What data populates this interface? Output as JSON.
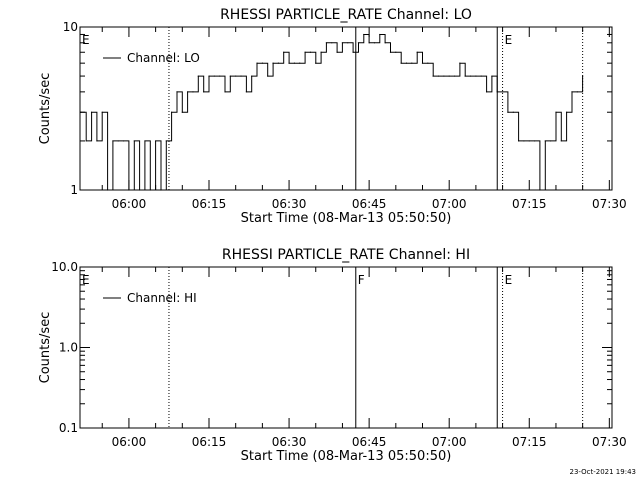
{
  "footer": {
    "timestamp": "23-Oct-2021 19:43"
  },
  "chart_data": [
    {
      "type": "line",
      "title": "RHESSI PARTICLE_RATE Channel: LO",
      "xlabel": "Start Time (08-Mar-13 05:50:50)",
      "ylabel": "Counts/sec",
      "yscale": "log",
      "ylim": [
        1,
        10
      ],
      "yticks": [
        1,
        10
      ],
      "ytick_labels": [
        "1",
        "10"
      ],
      "xlim": [
        "05:50:50",
        "07:30:30"
      ],
      "xticks": [
        "06:00",
        "06:15",
        "06:30",
        "06:45",
        "07:00",
        "07:15",
        "07:30"
      ],
      "legend": {
        "label": "Channel: LO",
        "position": "top-left"
      },
      "event_lines": [
        {
          "time": "06:07:30",
          "style": "dotted"
        },
        {
          "time": "06:42:30",
          "style": "solid"
        },
        {
          "time": "07:09:00",
          "style": "solid"
        },
        {
          "time": "07:10:00",
          "style": "dotted"
        },
        {
          "time": "07:25:00",
          "style": "dotted"
        }
      ],
      "annotations": [
        {
          "text": "E",
          "time": "05:50:50",
          "at": "top"
        },
        {
          "text": "E",
          "time": "07:10:00",
          "at": "top"
        }
      ],
      "series": [
        {
          "x": [
            "05:51:00",
            "05:52:00",
            "05:53:00",
            "05:54:00",
            "05:55:00",
            "05:56:00",
            "05:57:00",
            "05:58:00",
            "05:59:00",
            "06:00:00",
            "06:01:00",
            "06:02:00",
            "06:03:00",
            "06:04:00",
            "06:05:00",
            "06:06:00",
            "06:07:00",
            "06:08:00",
            "06:09:00",
            "06:10:00",
            "06:11:00",
            "06:12:00",
            "06:13:00",
            "06:14:00",
            "06:15:00",
            "06:16:00",
            "06:17:00",
            "06:18:00",
            "06:19:00",
            "06:20:00",
            "06:21:00",
            "06:22:00",
            "06:23:00",
            "06:24:00",
            "06:25:00",
            "06:26:00",
            "06:27:00",
            "06:28:00",
            "06:29:00",
            "06:30:00",
            "06:31:00",
            "06:32:00",
            "06:33:00",
            "06:34:00",
            "06:35:00",
            "06:36:00",
            "06:37:00",
            "06:38:00",
            "06:39:00",
            "06:40:00",
            "06:41:00",
            "06:42:00",
            "06:43:00",
            "06:44:00",
            "06:45:00",
            "06:46:00",
            "06:47:00",
            "06:48:00",
            "06:49:00",
            "06:50:00",
            "06:51:00",
            "06:52:00",
            "06:53:00",
            "06:54:00",
            "06:55:00",
            "06:56:00",
            "06:57:00",
            "06:58:00",
            "06:59:00",
            "07:00:00",
            "07:01:00",
            "07:02:00",
            "07:03:00",
            "07:04:00",
            "07:05:00",
            "07:06:00",
            "07:07:00",
            "07:08:00",
            "07:09:00",
            "07:10:00",
            "07:11:00",
            "07:12:00",
            "07:13:00",
            "07:14:00",
            "07:15:00",
            "07:16:00",
            "07:17:00",
            "07:18:00",
            "07:19:00",
            "07:20:00",
            "07:21:00",
            "07:22:00",
            "07:23:00",
            "07:24:00",
            "07:25:00"
          ],
          "y": [
            3,
            2,
            3,
            2,
            3,
            1,
            2,
            2,
            2,
            1,
            2,
            1,
            2,
            1,
            2,
            1,
            2,
            3,
            4,
            3,
            4,
            4,
            5,
            4,
            5,
            5,
            5,
            4,
            5,
            5,
            5,
            4,
            5,
            6,
            6,
            5,
            6,
            6,
            7,
            6,
            6,
            6,
            7,
            7,
            6,
            7,
            8,
            8,
            7,
            8,
            8,
            7,
            8,
            9,
            8,
            8,
            9,
            8,
            7,
            7,
            6,
            6,
            6,
            7,
            6,
            6,
            5,
            5,
            5,
            5,
            5,
            6,
            5,
            5,
            5,
            5,
            4,
            5,
            4,
            4,
            3,
            3,
            2,
            2,
            2,
            2,
            1,
            2,
            2,
            3,
            2,
            3,
            4,
            4,
            5
          ]
        }
      ]
    },
    {
      "type": "line",
      "title": "RHESSI PARTICLE_RATE Channel: HI",
      "xlabel": "Start Time (08-Mar-13 05:50:50)",
      "ylabel": "Counts/sec",
      "yscale": "log",
      "ylim": [
        0.1,
        10
      ],
      "yticks": [
        0.1,
        1,
        10
      ],
      "ytick_labels": [
        "0.1",
        "1.0",
        "10.0"
      ],
      "xlim": [
        "05:50:50",
        "07:30:30"
      ],
      "xticks": [
        "06:00",
        "06:15",
        "06:30",
        "06:45",
        "07:00",
        "07:15",
        "07:30"
      ],
      "legend": {
        "label": "Channel: HI",
        "position": "top-left"
      },
      "event_lines": [
        {
          "time": "06:07:30",
          "style": "dotted"
        },
        {
          "time": "06:42:30",
          "style": "solid"
        },
        {
          "time": "07:09:00",
          "style": "solid"
        },
        {
          "time": "07:10:00",
          "style": "dotted"
        },
        {
          "time": "07:25:00",
          "style": "dotted"
        }
      ],
      "annotations": [
        {
          "text": "E",
          "time": "05:50:50",
          "at": "top"
        },
        {
          "text": "F",
          "time": "06:42:30",
          "at": "top"
        },
        {
          "text": "E",
          "time": "07:10:00",
          "at": "top"
        }
      ],
      "series": [
        {
          "x": [],
          "y": []
        }
      ]
    }
  ]
}
